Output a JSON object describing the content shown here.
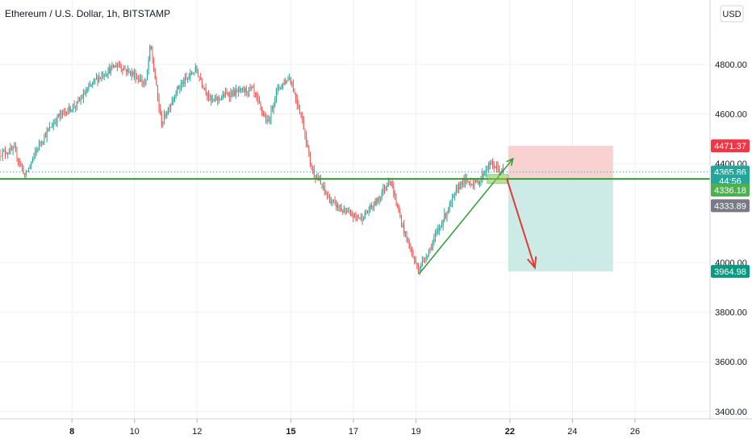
{
  "header": {
    "title": "Ethereum / U.S. Dollar, 1h, BITSTAMP",
    "currency_button": "USD"
  },
  "price_axis": {
    "ticks": [
      {
        "value": 4800,
        "label": "4800.00"
      },
      {
        "value": 4600,
        "label": "4600.00"
      },
      {
        "value": 4400,
        "label": "4400.00"
      },
      {
        "value": 4000,
        "label": "4000.00"
      },
      {
        "value": 3800,
        "label": "3800.00"
      },
      {
        "value": 3600,
        "label": "3600.00"
      },
      {
        "value": 3400,
        "label": "3400.00"
      }
    ],
    "badges": [
      {
        "label": "4471.37",
        "value": 4471.37,
        "color": "#f23645"
      },
      {
        "label": "4365.86",
        "value": 4365.86,
        "color": "#26a69a"
      },
      {
        "label": "44:56",
        "value": 4330,
        "color": "#26a69a"
      },
      {
        "label": "4336.18",
        "value": 4293,
        "color": "#4caf50"
      },
      {
        "label": "4333.89",
        "value": 4230,
        "color": "#787b86"
      },
      {
        "label": "3964.98",
        "value": 3964.98,
        "color": "#089981"
      }
    ]
  },
  "time_axis": {
    "ticks": [
      {
        "day": 8,
        "label": "8",
        "bold": true
      },
      {
        "day": 10,
        "label": "10",
        "bold": false
      },
      {
        "day": 12,
        "label": "12",
        "bold": false
      },
      {
        "day": 15,
        "label": "15",
        "bold": true
      },
      {
        "day": 17,
        "label": "17",
        "bold": false
      },
      {
        "day": 19,
        "label": "19",
        "bold": false
      },
      {
        "day": 22,
        "label": "22",
        "bold": true
      },
      {
        "day": 24,
        "label": "24",
        "bold": false
      },
      {
        "day": 26,
        "label": "26",
        "bold": false
      }
    ]
  },
  "colors": {
    "up": "#26a69a",
    "down": "#ef5350",
    "support_line": "#2e9e33",
    "trend_line": "#2e9e33",
    "forecast_arrow": "#e53935",
    "stop_zone": "#f8c9c9",
    "target_zone": "#c3e6e2",
    "grid": "#eef0f3",
    "axis_border": "#d1d4dc"
  },
  "chart_data": {
    "type": "candlestick",
    "symbol": "Ethereum / U.S. Dollar",
    "interval": "1h",
    "exchange": "BITSTAMP",
    "ylim": [
      3370,
      5060
    ],
    "price_path": [
      {
        "x": 5.7,
        "y": 4440
      },
      {
        "x": 6.2,
        "y": 4455
      },
      {
        "x": 6.55,
        "y": 4350
      },
      {
        "x": 7.0,
        "y": 4480
      },
      {
        "x": 7.6,
        "y": 4590
      },
      {
        "x": 8.2,
        "y": 4640
      },
      {
        "x": 8.8,
        "y": 4740
      },
      {
        "x": 9.5,
        "y": 4800
      },
      {
        "x": 10.0,
        "y": 4760
      },
      {
        "x": 10.4,
        "y": 4720
      },
      {
        "x": 10.55,
        "y": 4880
      },
      {
        "x": 10.9,
        "y": 4560
      },
      {
        "x": 11.4,
        "y": 4700
      },
      {
        "x": 12.0,
        "y": 4780
      },
      {
        "x": 12.5,
        "y": 4650
      },
      {
        "x": 13.0,
        "y": 4680
      },
      {
        "x": 13.8,
        "y": 4700
      },
      {
        "x": 14.3,
        "y": 4560
      },
      {
        "x": 14.6,
        "y": 4700
      },
      {
        "x": 15.0,
        "y": 4750
      },
      {
        "x": 15.4,
        "y": 4580
      },
      {
        "x": 15.7,
        "y": 4380
      },
      {
        "x": 16.3,
        "y": 4250
      },
      {
        "x": 16.8,
        "y": 4200
      },
      {
        "x": 17.3,
        "y": 4180
      },
      {
        "x": 17.8,
        "y": 4250
      },
      {
        "x": 18.2,
        "y": 4340
      },
      {
        "x": 18.6,
        "y": 4150
      },
      {
        "x": 19.1,
        "y": 3970
      },
      {
        "x": 19.5,
        "y": 4060
      },
      {
        "x": 20.0,
        "y": 4200
      },
      {
        "x": 20.5,
        "y": 4330
      },
      {
        "x": 21.0,
        "y": 4320
      },
      {
        "x": 21.4,
        "y": 4400
      },
      {
        "x": 21.8,
        "y": 4365.86
      }
    ],
    "support_level": 4338,
    "position_tool": {
      "entry": 4336.18,
      "stop": 4471.37,
      "target": 3964.98,
      "x_start": 21.95,
      "x_end": 25.3
    },
    "trendline": {
      "x1": 19.1,
      "y1": 3955,
      "x2": 22.1,
      "y2": 4420
    },
    "forecast_arrow": {
      "x1": 21.9,
      "y1": 4340,
      "x2": 22.8,
      "y2": 3980
    },
    "last_price": 4365.86,
    "xlim_days": [
      5.7,
      28.4
    ]
  }
}
